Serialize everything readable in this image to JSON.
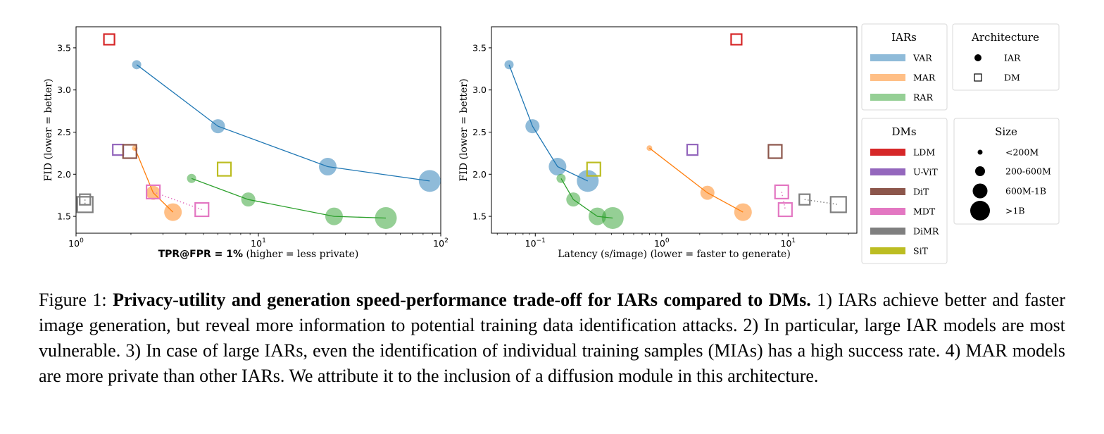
{
  "colors": {
    "VAR": "#1f77b4",
    "MAR": "#ff7f0e",
    "RAR": "#2ca02c",
    "LDM": "#d62728",
    "U-ViT": "#9467bd",
    "DiT": "#8c564b",
    "MDT": "#e377c2",
    "DiMR": "#7f7f7f",
    "SiT": "#bcbd22"
  },
  "chart_data": [
    {
      "type": "scatter",
      "title": "",
      "xlabel_bold": "TPR@FPR = 1%",
      "xlabel_rest": " (higher = less private)",
      "ylabel": "FID (lower = better)",
      "xscale": "log",
      "xlim": [
        1,
        100
      ],
      "ylim": [
        1.3,
        3.75
      ],
      "yticks": [
        "1.5",
        "2.0",
        "2.5",
        "3.0",
        "3.5"
      ],
      "xticks": [
        {
          "base": "10",
          "exp": "0",
          "value": 1
        },
        {
          "base": "10",
          "exp": "1",
          "value": 10
        },
        {
          "base": "10",
          "exp": "2",
          "value": 100
        }
      ],
      "series": [
        {
          "name": "VAR",
          "kind": "iar",
          "line": "solid",
          "points": [
            {
              "x": 2.15,
              "y": 3.3,
              "size": 1
            },
            {
              "x": 6.0,
              "y": 2.57,
              "size": 2
            },
            {
              "x": 24.0,
              "y": 2.09,
              "size": 3
            },
            {
              "x": 87.0,
              "y": 1.92,
              "size": 4
            }
          ]
        },
        {
          "name": "MAR",
          "kind": "iar",
          "line": "solid",
          "points": [
            {
              "x": 2.1,
              "y": 2.31,
              "size": 0
            },
            {
              "x": 2.65,
              "y": 1.78,
              "size": 2
            },
            {
              "x": 3.4,
              "y": 1.55,
              "size": 3
            }
          ]
        },
        {
          "name": "RAR",
          "kind": "iar",
          "line": "solid",
          "points": [
            {
              "x": 4.3,
              "y": 1.95,
              "size": 1
            },
            {
              "x": 8.8,
              "y": 1.7,
              "size": 2
            },
            {
              "x": 26.0,
              "y": 1.5,
              "size": 3
            },
            {
              "x": 50.0,
              "y": 1.48,
              "size": 4
            }
          ]
        },
        {
          "name": "LDM",
          "kind": "dm",
          "line": "none",
          "points": [
            {
              "x": 1.52,
              "y": 3.6,
              "size": 1
            }
          ]
        },
        {
          "name": "U-ViT",
          "kind": "dm",
          "line": "none",
          "points": [
            {
              "x": 1.7,
              "y": 2.29,
              "size": 1
            }
          ]
        },
        {
          "name": "DiT",
          "kind": "dm",
          "line": "none",
          "points": [
            {
              "x": 1.97,
              "y": 2.27,
              "size": 2
            }
          ]
        },
        {
          "name": "MDT",
          "kind": "dm",
          "line": "dotted",
          "points": [
            {
              "x": 2.65,
              "y": 1.79,
              "size": 2
            },
            {
              "x": 4.9,
              "y": 1.58,
              "size": 2
            }
          ]
        },
        {
          "name": "DiMR",
          "kind": "dm",
          "line": "dotted",
          "points": [
            {
              "x": 1.12,
              "y": 1.7,
              "size": 1
            },
            {
              "x": 1.12,
              "y": 1.64,
              "size": 3
            }
          ]
        },
        {
          "name": "SiT",
          "kind": "dm",
          "line": "none",
          "points": [
            {
              "x": 6.5,
              "y": 2.06,
              "size": 2
            }
          ]
        }
      ]
    },
    {
      "type": "scatter",
      "title": "",
      "xlabel": "Latency (s/image) (lower = faster to generate)",
      "ylabel": "FID (lower = better)",
      "xscale": "log",
      "xlim": [
        0.045,
        35
      ],
      "ylim": [
        1.3,
        3.75
      ],
      "yticks": [
        "1.5",
        "2.0",
        "2.5",
        "3.0",
        "3.5"
      ],
      "xticks": [
        {
          "base": "10",
          "exp": "−1",
          "value": 0.1
        },
        {
          "base": "10",
          "exp": "0",
          "value": 1
        },
        {
          "base": "10",
          "exp": "1",
          "value": 10
        }
      ],
      "series": [
        {
          "name": "VAR",
          "kind": "iar",
          "line": "solid",
          "points": [
            {
              "x": 0.062,
              "y": 3.3,
              "size": 1
            },
            {
              "x": 0.095,
              "y": 2.57,
              "size": 2
            },
            {
              "x": 0.15,
              "y": 2.09,
              "size": 3
            },
            {
              "x": 0.26,
              "y": 1.92,
              "size": 4
            }
          ]
        },
        {
          "name": "MAR",
          "kind": "iar",
          "line": "solid",
          "points": [
            {
              "x": 0.8,
              "y": 2.31,
              "size": 0
            },
            {
              "x": 2.3,
              "y": 1.78,
              "size": 2
            },
            {
              "x": 4.4,
              "y": 1.55,
              "size": 3
            }
          ]
        },
        {
          "name": "RAR",
          "kind": "iar",
          "line": "solid",
          "points": [
            {
              "x": 0.16,
              "y": 1.95,
              "size": 1
            },
            {
              "x": 0.2,
              "y": 1.7,
              "size": 2
            },
            {
              "x": 0.31,
              "y": 1.5,
              "size": 3
            },
            {
              "x": 0.41,
              "y": 1.48,
              "size": 4
            }
          ]
        },
        {
          "name": "LDM",
          "kind": "dm",
          "line": "none",
          "points": [
            {
              "x": 3.9,
              "y": 3.6,
              "size": 1
            }
          ]
        },
        {
          "name": "U-ViT",
          "kind": "dm",
          "line": "none",
          "points": [
            {
              "x": 1.75,
              "y": 2.29,
              "size": 1
            }
          ]
        },
        {
          "name": "DiT",
          "kind": "dm",
          "line": "none",
          "points": [
            {
              "x": 7.9,
              "y": 2.27,
              "size": 2
            }
          ]
        },
        {
          "name": "MDT",
          "kind": "dm",
          "line": "dotted",
          "points": [
            {
              "x": 8.9,
              "y": 1.79,
              "size": 2
            },
            {
              "x": 9.5,
              "y": 1.58,
              "size": 2
            }
          ]
        },
        {
          "name": "DiMR",
          "kind": "dm",
          "line": "dotted",
          "points": [
            {
              "x": 13.5,
              "y": 1.7,
              "size": 1
            },
            {
              "x": 25.0,
              "y": 1.64,
              "size": 3
            }
          ]
        },
        {
          "name": "SiT",
          "kind": "dm",
          "line": "none",
          "points": [
            {
              "x": 0.29,
              "y": 2.06,
              "size": 2
            }
          ]
        }
      ]
    }
  ],
  "legends": {
    "iars": {
      "title": "IARs",
      "entries": [
        "VAR",
        "MAR",
        "RAR"
      ]
    },
    "dms": {
      "title": "DMs",
      "entries": [
        "LDM",
        "U-ViT",
        "DiT",
        "MDT",
        "DiMR",
        "SiT"
      ]
    },
    "architecture": {
      "title": "Architecture",
      "entries": [
        {
          "label": "IAR",
          "marker": "circle"
        },
        {
          "label": "DM",
          "marker": "square"
        }
      ]
    },
    "size": {
      "title": "Size",
      "entries": [
        "<200M",
        "200-600M",
        "600M-1B",
        ">1B"
      ]
    }
  },
  "caption": {
    "prefix": "Figure 1: ",
    "bold": "Privacy-utility and generation speed-performance trade-off for IARs compared to DMs.",
    "text": " 1) IARs achieve better and faster image generation, but reveal more information to potential training data identification attacks. 2) In particular, large IAR models are most vulnerable. 3) In case of large IARs, even the identification of individual training samples (MIAs) has a high success rate. 4) MAR models are more private than other IARs. We attribute it to the inclusion of a diffusion module in this architecture."
  }
}
